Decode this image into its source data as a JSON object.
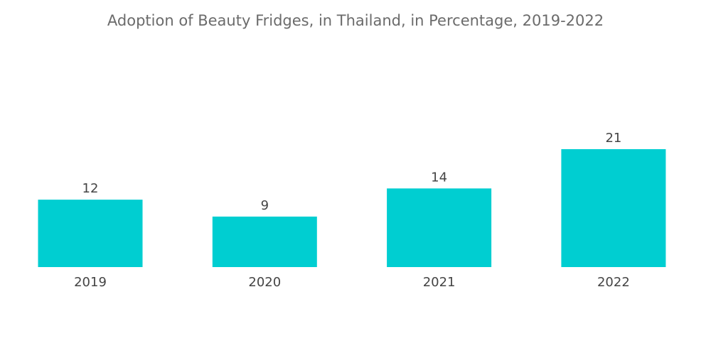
{
  "chart_data": {
    "type": "bar",
    "title": "Adoption of Beauty Fridges, in Thailand, in Percentage, 2019-2022",
    "categories": [
      "2019",
      "2020",
      "2021",
      "2022"
    ],
    "values": [
      12,
      9,
      14,
      21
    ],
    "xlabel": "",
    "ylabel": "",
    "ylim": [
      0,
      21
    ],
    "grid": false,
    "legend": "none",
    "data_labels": [
      "12",
      "9",
      "14",
      "21"
    ],
    "bar_color": "#00CED1",
    "label_color": "#444444",
    "title_color": "#6b6b6b"
  }
}
